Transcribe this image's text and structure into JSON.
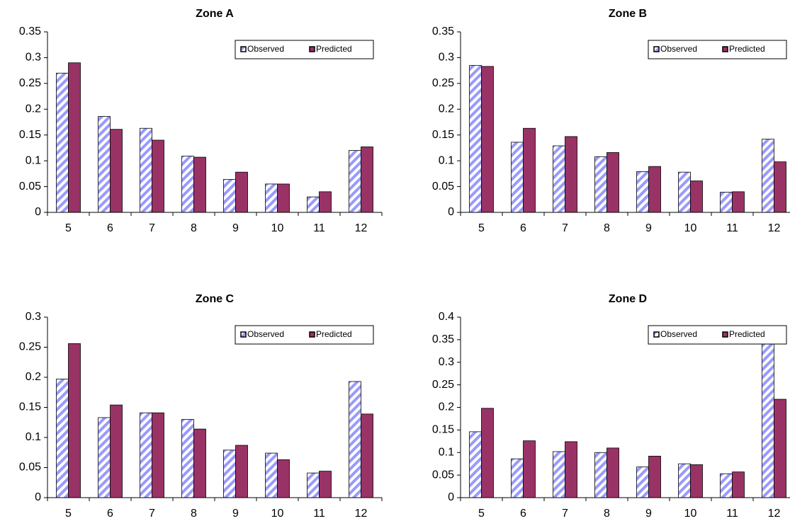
{
  "chart_data": [
    {
      "type": "bar",
      "title": "Zone A",
      "categories": [
        "5",
        "6",
        "7",
        "8",
        "9",
        "10",
        "11",
        "12"
      ],
      "series": [
        {
          "name": "Observed",
          "color": "#9999ff",
          "values": [
            0.27,
            0.186,
            0.163,
            0.109,
            0.064,
            0.055,
            0.03,
            0.12
          ]
        },
        {
          "name": "Predicted",
          "color": "#993366",
          "values": [
            0.29,
            0.161,
            0.14,
            0.107,
            0.078,
            0.055,
            0.04,
            0.127
          ]
        }
      ],
      "ylim": [
        0,
        0.35
      ],
      "yticks": [
        0,
        0.05,
        0.1,
        0.15,
        0.2,
        0.25,
        0.3,
        0.35
      ],
      "legend": "top-right"
    },
    {
      "type": "bar",
      "title": "Zone B",
      "categories": [
        "5",
        "6",
        "7",
        "8",
        "9",
        "10",
        "11",
        "12"
      ],
      "series": [
        {
          "name": "Observed",
          "color": "#9999ff",
          "values": [
            0.285,
            0.136,
            0.129,
            0.108,
            0.079,
            0.078,
            0.039,
            0.142
          ]
        },
        {
          "name": "Predicted",
          "color": "#993366",
          "values": [
            0.283,
            0.163,
            0.147,
            0.116,
            0.089,
            0.061,
            0.04,
            0.098
          ]
        }
      ],
      "ylim": [
        0,
        0.35
      ],
      "yticks": [
        0,
        0.05,
        0.1,
        0.15,
        0.2,
        0.25,
        0.3,
        0.35
      ],
      "legend": "top-right"
    },
    {
      "type": "bar",
      "title": "Zone C",
      "categories": [
        "5",
        "6",
        "7",
        "8",
        "9",
        "10",
        "11",
        "12"
      ],
      "series": [
        {
          "name": "Observed",
          "color": "#9999ff",
          "values": [
            0.197,
            0.133,
            0.141,
            0.13,
            0.079,
            0.074,
            0.041,
            0.193
          ]
        },
        {
          "name": "Predicted",
          "color": "#993366",
          "values": [
            0.256,
            0.154,
            0.141,
            0.114,
            0.087,
            0.063,
            0.044,
            0.139
          ]
        }
      ],
      "ylim": [
        0,
        0.3
      ],
      "yticks": [
        0,
        0.05,
        0.1,
        0.15,
        0.2,
        0.25,
        0.3
      ],
      "legend": "top-right"
    },
    {
      "type": "bar",
      "title": "Zone D",
      "categories": [
        "5",
        "6",
        "7",
        "8",
        "9",
        "10",
        "11",
        "12"
      ],
      "series": [
        {
          "name": "Observed",
          "color": "#9999ff",
          "values": [
            0.146,
            0.086,
            0.102,
            0.1,
            0.068,
            0.075,
            0.053,
            0.37
          ]
        },
        {
          "name": "Predicted",
          "color": "#993366",
          "values": [
            0.198,
            0.126,
            0.124,
            0.11,
            0.092,
            0.073,
            0.057,
            0.218
          ]
        }
      ],
      "ylim": [
        0,
        0.4
      ],
      "yticks": [
        0,
        0.05,
        0.1,
        0.15,
        0.2,
        0.25,
        0.3,
        0.35,
        0.4
      ],
      "legend": "top-right"
    }
  ]
}
